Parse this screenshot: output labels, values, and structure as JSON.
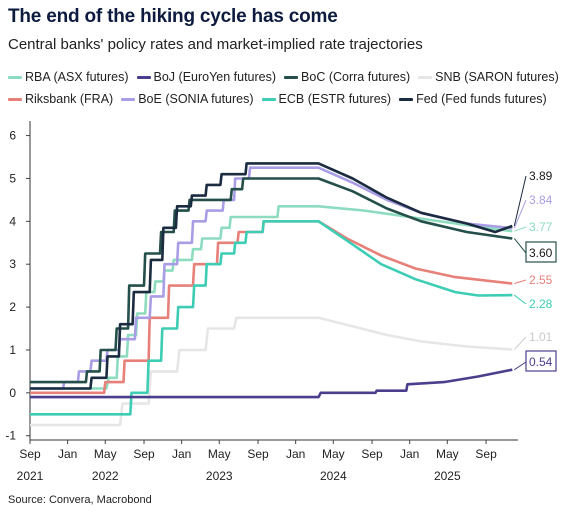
{
  "chart_data": {
    "type": "line",
    "title": "The end of the hiking cycle has come",
    "subtitle": "Central banks' policy rates and market-implied rate trajectories",
    "source": "Source: Convera, Macrobond",
    "y_ticks": [
      "-1",
      "0",
      "1",
      "2",
      "3",
      "4",
      "5",
      "6"
    ],
    "ylim": [
      -1.1,
      6.2
    ],
    "x_ticks": [
      {
        "month": "Sep",
        "year": "2021",
        "t": 2021.67
      },
      {
        "month": "Jan",
        "year": "",
        "t": 2022.0
      },
      {
        "month": "May",
        "year": "2022",
        "t": 2022.33
      },
      {
        "month": "Sep",
        "year": "",
        "t": 2022.67
      },
      {
        "month": "Jan",
        "year": "",
        "t": 2023.0
      },
      {
        "month": "May",
        "year": "2023",
        "t": 2023.33
      },
      {
        "month": "Sep",
        "year": "",
        "t": 2023.67
      },
      {
        "month": "Jan",
        "year": "",
        "t": 2024.0
      },
      {
        "month": "May",
        "year": "2024",
        "t": 2024.33
      },
      {
        "month": "Sep",
        "year": "",
        "t": 2024.67
      },
      {
        "month": "Jan",
        "year": "",
        "t": 2025.0
      },
      {
        "month": "May",
        "year": "2025",
        "t": 2025.33
      },
      {
        "month": "Sep",
        "year": "",
        "t": 2025.67
      }
    ],
    "xlim": [
      2021.67,
      2025.95
    ],
    "legend_rows": [
      [
        "RBA (ASX futures)",
        "BoJ (EuroYen futures)",
        "BoC (Corra futures)",
        "SNB (SARON futures)"
      ],
      [
        "Riksbank (FRA)",
        "BoE (SONIA futures)",
        "ECB (ESTR futures)",
        "Fed (Fed funds futures)"
      ]
    ],
    "series": [
      {
        "name": "SNB (SARON futures)",
        "color": "#e6e6e6",
        "end_label": "1.01",
        "values": [
          [
            2021.67,
            -0.75
          ],
          [
            2022.46,
            -0.75
          ],
          [
            2022.48,
            -0.25
          ],
          [
            2022.71,
            -0.25
          ],
          [
            2022.73,
            0.5
          ],
          [
            2022.96,
            0.5
          ],
          [
            2022.98,
            1.0
          ],
          [
            2023.21,
            1.0
          ],
          [
            2023.23,
            1.5
          ],
          [
            2023.46,
            1.5
          ],
          [
            2023.48,
            1.75
          ],
          [
            2024.2,
            1.75
          ],
          [
            2024.5,
            1.55
          ],
          [
            2024.8,
            1.35
          ],
          [
            2025.1,
            1.2
          ],
          [
            2025.5,
            1.08
          ],
          [
            2025.9,
            1.01
          ]
        ]
      },
      {
        "name": "RBA (ASX futures)",
        "color": "#8edcbf",
        "end_label": "3.77",
        "values": [
          [
            2021.67,
            0.1
          ],
          [
            2022.34,
            0.1
          ],
          [
            2022.36,
            0.35
          ],
          [
            2022.43,
            0.35
          ],
          [
            2022.44,
            0.85
          ],
          [
            2022.52,
            0.85
          ],
          [
            2022.53,
            1.35
          ],
          [
            2022.6,
            1.35
          ],
          [
            2022.61,
            1.85
          ],
          [
            2022.68,
            1.85
          ],
          [
            2022.69,
            2.35
          ],
          [
            2022.76,
            2.35
          ],
          [
            2022.77,
            2.6
          ],
          [
            2022.84,
            2.6
          ],
          [
            2022.85,
            2.85
          ],
          [
            2022.92,
            2.85
          ],
          [
            2022.93,
            3.1
          ],
          [
            2023.09,
            3.1
          ],
          [
            2023.1,
            3.35
          ],
          [
            2023.17,
            3.35
          ],
          [
            2023.18,
            3.6
          ],
          [
            2023.34,
            3.6
          ],
          [
            2023.35,
            3.85
          ],
          [
            2023.42,
            3.85
          ],
          [
            2023.43,
            4.1
          ],
          [
            2023.84,
            4.1
          ],
          [
            2023.85,
            4.35
          ],
          [
            2024.2,
            4.35
          ],
          [
            2024.6,
            4.25
          ],
          [
            2025.0,
            4.1
          ],
          [
            2025.4,
            3.95
          ],
          [
            2025.9,
            3.77
          ]
        ]
      },
      {
        "name": "Riksbank (FRA)",
        "color": "#e8807a",
        "end_label": "2.55",
        "values": [
          [
            2021.67,
            0
          ],
          [
            2022.32,
            0
          ],
          [
            2022.33,
            0.25
          ],
          [
            2022.49,
            0.25
          ],
          [
            2022.5,
            0.75
          ],
          [
            2022.71,
            0.75
          ],
          [
            2022.72,
            1.75
          ],
          [
            2022.88,
            1.75
          ],
          [
            2022.89,
            2.5
          ],
          [
            2023.1,
            2.5
          ],
          [
            2023.11,
            3.0
          ],
          [
            2023.31,
            3.0
          ],
          [
            2023.32,
            3.5
          ],
          [
            2023.49,
            3.5
          ],
          [
            2023.5,
            3.75
          ],
          [
            2023.71,
            3.75
          ],
          [
            2023.72,
            4.0
          ],
          [
            2024.2,
            4.0
          ],
          [
            2024.45,
            3.6
          ],
          [
            2024.75,
            3.2
          ],
          [
            2025.05,
            2.9
          ],
          [
            2025.4,
            2.7
          ],
          [
            2025.9,
            2.55
          ]
        ]
      },
      {
        "name": "ECB (ESTR futures)",
        "color": "#3dcdb4",
        "end_label": "2.28",
        "values": [
          [
            2021.67,
            -0.5
          ],
          [
            2022.55,
            -0.5
          ],
          [
            2022.56,
            0.0
          ],
          [
            2022.7,
            0.0
          ],
          [
            2022.71,
            0.75
          ],
          [
            2022.82,
            0.75
          ],
          [
            2022.83,
            1.5
          ],
          [
            2022.96,
            1.5
          ],
          [
            2022.97,
            2.0
          ],
          [
            2023.1,
            2.0
          ],
          [
            2023.11,
            2.5
          ],
          [
            2023.21,
            2.5
          ],
          [
            2023.22,
            3.0
          ],
          [
            2023.34,
            3.0
          ],
          [
            2023.35,
            3.25
          ],
          [
            2023.46,
            3.25
          ],
          [
            2023.47,
            3.5
          ],
          [
            2023.56,
            3.5
          ],
          [
            2023.57,
            3.75
          ],
          [
            2023.71,
            3.75
          ],
          [
            2023.72,
            4.0
          ],
          [
            2024.2,
            4.0
          ],
          [
            2024.45,
            3.55
          ],
          [
            2024.75,
            3.0
          ],
          [
            2025.05,
            2.65
          ],
          [
            2025.4,
            2.35
          ],
          [
            2025.6,
            2.27
          ],
          [
            2025.9,
            2.28
          ]
        ]
      },
      {
        "name": "BoE (SONIA futures)",
        "color": "#a99ee6",
        "end_label": "3.84",
        "values": [
          [
            2021.67,
            0.1
          ],
          [
            2021.96,
            0.1
          ],
          [
            2021.97,
            0.25
          ],
          [
            2022.09,
            0.25
          ],
          [
            2022.1,
            0.5
          ],
          [
            2022.2,
            0.5
          ],
          [
            2022.21,
            0.75
          ],
          [
            2022.34,
            0.75
          ],
          [
            2022.35,
            1.0
          ],
          [
            2022.45,
            1.0
          ],
          [
            2022.46,
            1.25
          ],
          [
            2022.59,
            1.25
          ],
          [
            2022.6,
            1.75
          ],
          [
            2022.72,
            1.75
          ],
          [
            2022.73,
            2.25
          ],
          [
            2022.84,
            2.25
          ],
          [
            2022.85,
            3.0
          ],
          [
            2022.96,
            3.0
          ],
          [
            2022.97,
            3.5
          ],
          [
            2023.09,
            3.5
          ],
          [
            2023.1,
            4.0
          ],
          [
            2023.21,
            4.0
          ],
          [
            2023.22,
            4.25
          ],
          [
            2023.36,
            4.25
          ],
          [
            2023.37,
            4.5
          ],
          [
            2023.46,
            4.5
          ],
          [
            2023.47,
            5.0
          ],
          [
            2023.59,
            5.0
          ],
          [
            2023.6,
            5.25
          ],
          [
            2024.2,
            5.25
          ],
          [
            2024.5,
            4.9
          ],
          [
            2024.8,
            4.5
          ],
          [
            2025.1,
            4.2
          ],
          [
            2025.5,
            3.95
          ],
          [
            2025.9,
            3.84
          ]
        ]
      },
      {
        "name": "BoC (Corra futures)",
        "color": "#244f4a",
        "end_label": "3.60",
        "values": [
          [
            2021.67,
            0.25
          ],
          [
            2022.16,
            0.25
          ],
          [
            2022.17,
            0.5
          ],
          [
            2022.28,
            0.5
          ],
          [
            2022.29,
            1.0
          ],
          [
            2022.42,
            1.0
          ],
          [
            2022.43,
            1.5
          ],
          [
            2022.53,
            1.5
          ],
          [
            2022.54,
            2.5
          ],
          [
            2022.67,
            2.5
          ],
          [
            2022.68,
            3.25
          ],
          [
            2022.81,
            3.25
          ],
          [
            2022.82,
            3.75
          ],
          [
            2022.93,
            3.75
          ],
          [
            2022.94,
            4.25
          ],
          [
            2023.06,
            4.25
          ],
          [
            2023.07,
            4.5
          ],
          [
            2023.43,
            4.5
          ],
          [
            2023.44,
            4.75
          ],
          [
            2023.53,
            4.75
          ],
          [
            2023.54,
            5.0
          ],
          [
            2024.2,
            5.0
          ],
          [
            2024.5,
            4.7
          ],
          [
            2024.8,
            4.3
          ],
          [
            2025.1,
            4.0
          ],
          [
            2025.5,
            3.75
          ],
          [
            2025.9,
            3.6
          ]
        ]
      },
      {
        "name": "Fed (Fed funds futures)",
        "color": "#1b2b40",
        "end_label": "3.89",
        "values": [
          [
            2021.67,
            0.1
          ],
          [
            2022.2,
            0.1
          ],
          [
            2022.21,
            0.35
          ],
          [
            2022.34,
            0.35
          ],
          [
            2022.35,
            0.85
          ],
          [
            2022.45,
            0.85
          ],
          [
            2022.46,
            1.6
          ],
          [
            2022.57,
            1.6
          ],
          [
            2022.58,
            2.35
          ],
          [
            2022.72,
            2.35
          ],
          [
            2022.73,
            3.1
          ],
          [
            2022.83,
            3.1
          ],
          [
            2022.84,
            3.85
          ],
          [
            2022.95,
            3.85
          ],
          [
            2022.96,
            4.35
          ],
          [
            2023.08,
            4.35
          ],
          [
            2023.09,
            4.6
          ],
          [
            2023.21,
            4.6
          ],
          [
            2023.22,
            4.85
          ],
          [
            2023.34,
            4.85
          ],
          [
            2023.35,
            5.1
          ],
          [
            2023.56,
            5.1
          ],
          [
            2023.57,
            5.35
          ],
          [
            2024.2,
            5.35
          ],
          [
            2024.5,
            5.0
          ],
          [
            2024.8,
            4.55
          ],
          [
            2025.1,
            4.2
          ],
          [
            2025.5,
            3.95
          ],
          [
            2025.75,
            3.75
          ],
          [
            2025.9,
            3.89
          ]
        ]
      },
      {
        "name": "BoJ (EuroYen futures)",
        "color": "#4a3f8c",
        "end_label": "0.54",
        "values": [
          [
            2021.67,
            -0.1
          ],
          [
            2024.2,
            -0.1
          ],
          [
            2024.22,
            0.0
          ],
          [
            2024.7,
            0.0
          ],
          [
            2024.71,
            0.05
          ],
          [
            2024.97,
            0.05
          ],
          [
            2024.98,
            0.2
          ],
          [
            2025.3,
            0.25
          ],
          [
            2025.6,
            0.38
          ],
          [
            2025.9,
            0.54
          ]
        ]
      }
    ]
  }
}
